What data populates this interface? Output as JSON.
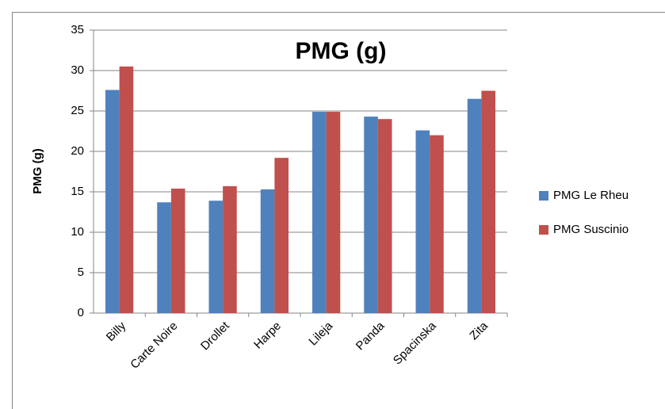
{
  "chart_data": {
    "type": "bar",
    "title": "PMG (g)",
    "y_label": "PMG (g)",
    "categories": [
      "Billy",
      "Carte Noire",
      "Drollet",
      "Harpe",
      "Lileja",
      "Panda",
      "Spacinska",
      "Zita"
    ],
    "series": [
      {
        "name": "PMG Le Rheu",
        "color": "#4f81bd",
        "values": [
          27.6,
          13.7,
          13.9,
          15.3,
          24.9,
          24.3,
          22.6,
          26.5
        ]
      },
      {
        "name": "PMG Suscinio",
        "color": "#c0504d",
        "values": [
          30.5,
          15.4,
          15.7,
          19.2,
          24.9,
          24.0,
          22.0,
          27.5
        ]
      }
    ],
    "ylim": [
      0,
      35
    ],
    "yticks": [
      0,
      5,
      10,
      15,
      20,
      25,
      30,
      35
    ],
    "grid": true,
    "legend": "right"
  }
}
